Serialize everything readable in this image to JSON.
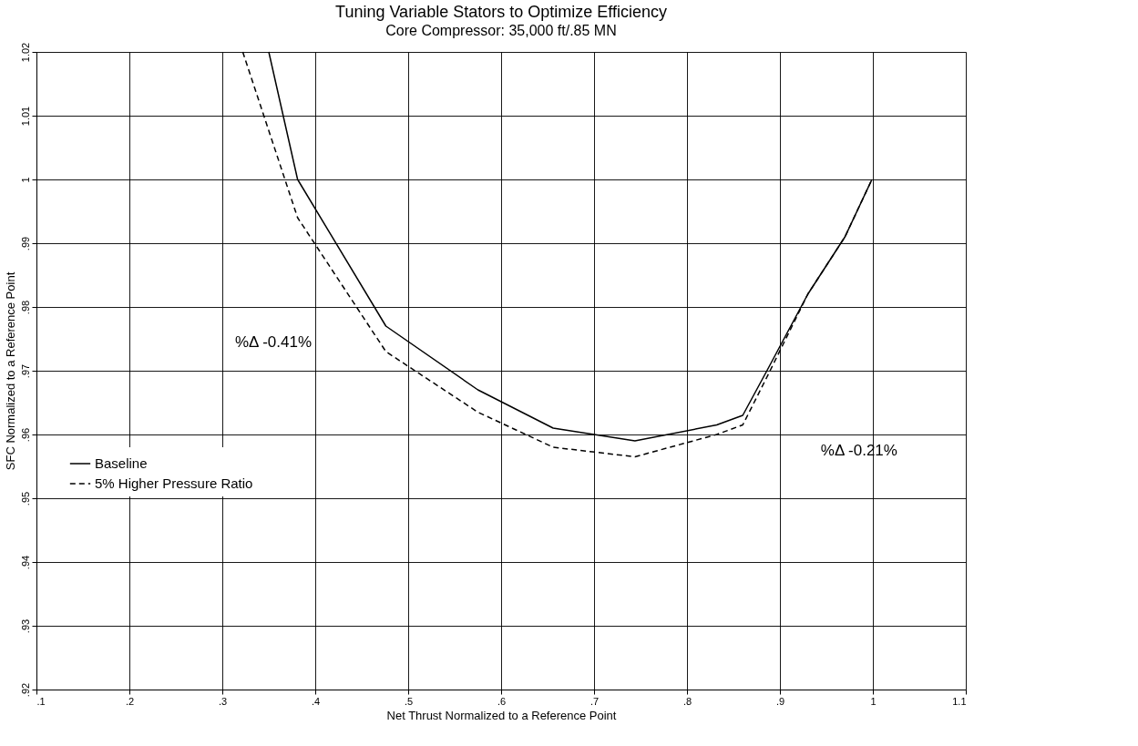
{
  "chart_data": {
    "type": "line",
    "title": "Tuning Variable Stators to Optimize Efficiency",
    "subtitle": "Core Compressor: 35,000 ft/.85 MN",
    "xlabel": "Net Thrust Normalized to a Reference Point",
    "ylabel": "SFC Normalized to a Reference Point",
    "series": [
      {
        "name": "Baseline",
        "color": "#000000",
        "line_style": "solid",
        "x": [
          0.35,
          0.381,
          0.476,
          0.575,
          0.656,
          0.744,
          0.832,
          0.86,
          0.886,
          0.93,
          0.97,
          0.999
        ],
        "values": [
          1.02,
          1.0,
          0.977,
          0.967,
          0.961,
          0.959,
          0.9615,
          0.963,
          0.97,
          0.982,
          0.991,
          1.0
        ]
      },
      {
        "name": "5% Higher Pressure Ratio",
        "color": "#000000",
        "line_style": "dashed",
        "x": [
          0.322,
          0.381,
          0.476,
          0.575,
          0.656,
          0.744,
          0.832,
          0.86,
          0.886,
          0.93,
          0.97,
          0.999
        ],
        "values": [
          1.02,
          0.994,
          0.973,
          0.9635,
          0.958,
          0.9565,
          0.96,
          0.9615,
          0.969,
          0.982,
          0.991,
          1.0
        ]
      }
    ],
    "annotations": [
      "%Δ -0.41%",
      "%Δ -0.21%"
    ],
    "xlim": [
      0.1,
      1.1
    ],
    "xticks": [
      {
        "value": 0.1,
        "label": ".1"
      },
      {
        "value": 0.2,
        "label": ".2"
      },
      {
        "value": 0.3,
        "label": ".3"
      },
      {
        "value": 0.4,
        "label": ".4"
      },
      {
        "value": 0.5,
        "label": ".5"
      },
      {
        "value": 0.6,
        "label": ".6"
      },
      {
        "value": 0.7,
        "label": ".7"
      },
      {
        "value": 0.8,
        "label": ".8"
      },
      {
        "value": 0.9,
        "label": ".9"
      },
      {
        "value": 1.0,
        "label": "1"
      },
      {
        "value": 1.1,
        "label": "1.1"
      }
    ],
    "ylim": [
      0.92,
      1.02
    ],
    "yticks": [
      {
        "value": 0.92,
        "label": ".92"
      },
      {
        "value": 0.93,
        "label": ".93"
      },
      {
        "value": 0.94,
        "label": ".94"
      },
      {
        "value": 0.95,
        "label": ".95"
      },
      {
        "value": 0.96,
        "label": ".96"
      },
      {
        "value": 0.97,
        "label": ".97"
      },
      {
        "value": 0.98,
        "label": ".98"
      },
      {
        "value": 0.99,
        "label": ".99"
      },
      {
        "value": 1.0,
        "label": "1"
      },
      {
        "value": 1.01,
        "label": "1.01"
      },
      {
        "value": 1.02,
        "label": "1.02"
      }
    ],
    "grid": true,
    "legend": "left",
    "marker": "none"
  }
}
